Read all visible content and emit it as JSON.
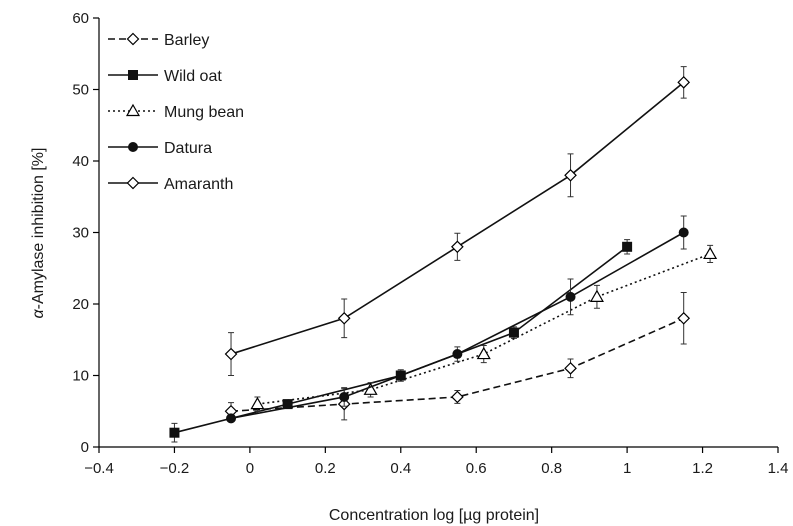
{
  "chart_data": {
    "type": "line",
    "title": "",
    "xlabel": "Concentration log [µg protein]",
    "ylabel_prefix": "α",
    "ylabel_rest": "-Amylase inhibition [%]",
    "xlim": [
      -0.4,
      1.4
    ],
    "ylim": [
      0,
      60
    ],
    "xticks": [
      -0.4,
      -0.2,
      0,
      0.2,
      0.4,
      0.6,
      0.8,
      1,
      1.2,
      1.4
    ],
    "xtick_labels": [
      "−0.4",
      "−0.2",
      "0",
      "0.2",
      "0.4",
      "0.6",
      "0.8",
      "1",
      "1.2",
      "1.4"
    ],
    "yticks": [
      0,
      10,
      20,
      30,
      40,
      50,
      60
    ],
    "ytick_labels": [
      "0",
      "10",
      "20",
      "30",
      "40",
      "50",
      "60"
    ],
    "grid": false,
    "legend_position": "top-left",
    "series": [
      {
        "name": "Barley",
        "line_style": "dashed",
        "marker": "open-diamond",
        "x": [
          -0.05,
          0.25,
          0.55,
          0.85,
          1.15
        ],
        "y": [
          5,
          6,
          7,
          11,
          18
        ],
        "err": [
          1.2,
          2.2,
          0.9,
          1.3,
          3.6
        ]
      },
      {
        "name": "Wild oat",
        "line_style": "solid",
        "marker": "filled-square",
        "x": [
          -0.2,
          0.1,
          0.4,
          0.7,
          1.0
        ],
        "y": [
          2,
          6,
          10,
          16,
          28
        ],
        "err": [
          1.3,
          0.3,
          0.8,
          0.8,
          1.0
        ]
      },
      {
        "name": "Mung bean",
        "line_style": "dotted",
        "marker": "open-triangle",
        "x": [
          0.02,
          0.32,
          0.62,
          0.92,
          1.22
        ],
        "y": [
          6,
          8,
          13,
          21,
          27
        ],
        "err": [
          1.0,
          1.0,
          1.2,
          1.6,
          1.2
        ]
      },
      {
        "name": "Datura",
        "line_style": "solid",
        "marker": "filled-circle",
        "x": [
          -0.05,
          0.25,
          0.55,
          0.85,
          1.15
        ],
        "y": [
          4,
          7,
          13,
          21,
          30
        ],
        "err": [
          0.5,
          1.3,
          1.0,
          2.5,
          2.3
        ]
      },
      {
        "name": "Amaranth",
        "line_style": "solid",
        "marker": "open-diamond",
        "x": [
          -0.05,
          0.25,
          0.55,
          0.85,
          1.15
        ],
        "y": [
          13,
          18,
          28,
          38,
          51
        ],
        "err": [
          3.0,
          2.7,
          1.9,
          3.0,
          2.2
        ]
      }
    ]
  }
}
